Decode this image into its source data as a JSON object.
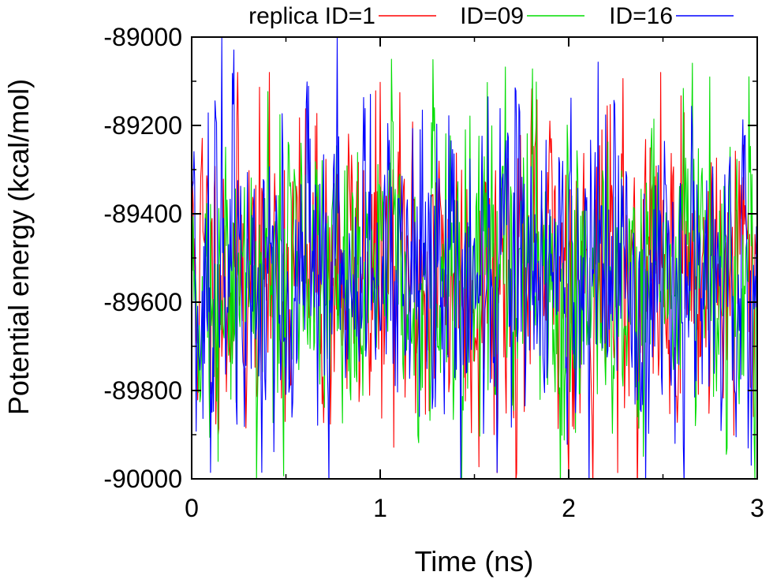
{
  "chart_data": {
    "type": "line",
    "title": "",
    "xlabel": "Time (ns)",
    "ylabel": "Potential energy (kcal/mol)",
    "xlim": [
      0,
      3
    ],
    "ylim": [
      -90000,
      -89000
    ],
    "x_ticks": [
      "0",
      "1",
      "2",
      "3"
    ],
    "y_ticks": [
      "-89000",
      "-89200",
      "-89400",
      "-89600",
      "-89800",
      "-90000"
    ],
    "legend_placement": "top",
    "grid": false,
    "sampling_interval_ns": 0.004,
    "series": [
      {
        "name": "replica ID=1",
        "color": "#ff0000",
        "mean": -89530,
        "fluctuation_range": [
          -90000,
          -89080
        ],
        "note_values": "dense noisy trace fluctuating around mean"
      },
      {
        "name": "ID=09",
        "color": "#00dd00",
        "mean": -89530,
        "fluctuation_range": [
          -90000,
          -89050
        ],
        "note_values": "dense noisy trace fluctuating around mean"
      },
      {
        "name": "ID=16",
        "color": "#0000ff",
        "mean": -89530,
        "fluctuation_range": [
          -90000,
          -89000
        ],
        "note_values": "dense noisy trace fluctuating around mean"
      }
    ]
  }
}
